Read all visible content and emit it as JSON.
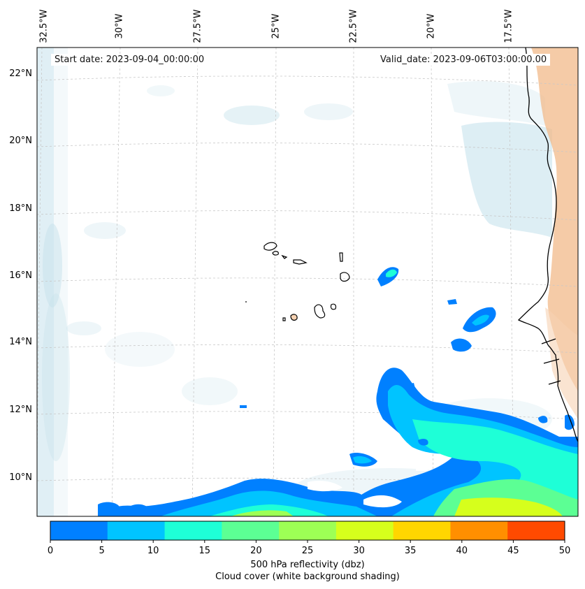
{
  "map": {
    "start_label": "Start date: 2023-09-04_00:00:00",
    "valid_label": "Valid_date: 2023-09-06T03:00:00.00",
    "lon_labels": [
      "32.5°W",
      "30°W",
      "27.5°W",
      "25°W",
      "22.5°W",
      "20°W",
      "17.5°W"
    ],
    "lat_labels": [
      "22°N",
      "20°N",
      "18°N",
      "16°N",
      "14°N",
      "12°N",
      "10°N"
    ],
    "features": {
      "islands": [
        "santo-antao",
        "sao-vicente",
        "santa-luzia",
        "sao-nicolau",
        "sal",
        "boa-vista",
        "maio",
        "santiago",
        "fogo",
        "brava"
      ],
      "coastline": "west-africa"
    },
    "colors": {
      "ocean": "#ffffff",
      "cloud_shade": "#c6e2ec",
      "land_warm": "#f2b98a",
      "coast": "#000000",
      "grid": "#c8c8c8"
    }
  },
  "colorbar": {
    "ticks": [
      "0",
      "5",
      "10",
      "15",
      "20",
      "25",
      "30",
      "35",
      "40",
      "45",
      "50"
    ],
    "colors": [
      "#0080ff",
      "#00c4ff",
      "#1effd7",
      "#5cff94",
      "#9dff55",
      "#d6ff1c",
      "#ffd600",
      "#ff8f00",
      "#ff4a00"
    ],
    "title_line1": "500 hPa reflectivity (dbz)",
    "title_line2": "Cloud cover (white background shading)"
  }
}
